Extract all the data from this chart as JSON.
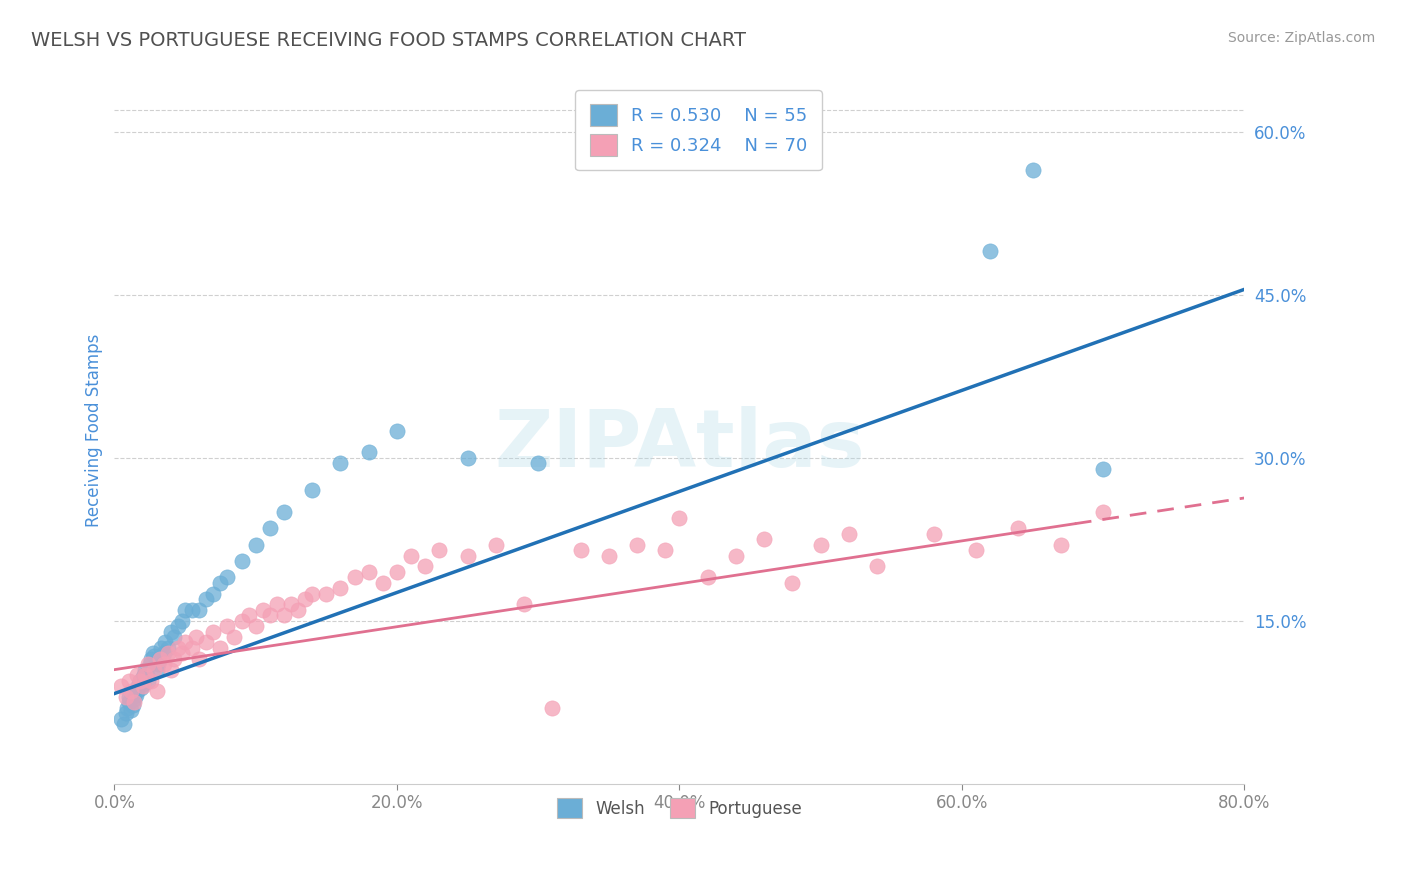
{
  "title": "WELSH VS PORTUGUESE RECEIVING FOOD STAMPS CORRELATION CHART",
  "source": "Source: ZipAtlas.com",
  "ylabel": "Receiving Food Stamps",
  "xlabel_ticks": [
    "0.0%",
    "20.0%",
    "40.0%",
    "60.0%",
    "80.0%"
  ],
  "ylabel_ticks": [
    "15.0%",
    "30.0%",
    "45.0%",
    "60.0%"
  ],
  "xlim": [
    0.0,
    0.8
  ],
  "ylim": [
    0.0,
    0.65
  ],
  "ytick_vals": [
    0.15,
    0.3,
    0.45,
    0.6
  ],
  "xtick_vals": [
    0.0,
    0.2,
    0.4,
    0.6,
    0.8
  ],
  "welsh_R": 0.53,
  "welsh_N": 55,
  "portuguese_R": 0.324,
  "portuguese_N": 70,
  "welsh_color": "#6baed6",
  "portuguese_color": "#f4a0b5",
  "welsh_line_color": "#2171b5",
  "portuguese_line_color": "#e07090",
  "background_color": "#ffffff",
  "grid_color": "#d0d0d0",
  "watermark": "ZIPAtlas",
  "watermark_color": "#add8e6",
  "title_color": "#505050",
  "axis_label_color": "#4a90d9",
  "tick_color": "#888888",
  "welsh_line_x0": 0.0,
  "welsh_line_y0": 0.083,
  "welsh_line_x1": 0.8,
  "welsh_line_y1": 0.455,
  "port_line_x0": 0.0,
  "port_line_y0": 0.105,
  "port_line_x1": 0.8,
  "port_line_y1": 0.263,
  "port_line_solid_x1": 0.68,
  "welsh_scatter_x": [
    0.005,
    0.007,
    0.008,
    0.009,
    0.01,
    0.01,
    0.012,
    0.013,
    0.014,
    0.015,
    0.016,
    0.017,
    0.018,
    0.019,
    0.02,
    0.02,
    0.021,
    0.022,
    0.023,
    0.024,
    0.025,
    0.026,
    0.027,
    0.028,
    0.03,
    0.031,
    0.032,
    0.033,
    0.035,
    0.036,
    0.038,
    0.04,
    0.042,
    0.045,
    0.048,
    0.05,
    0.055,
    0.06,
    0.065,
    0.07,
    0.075,
    0.08,
    0.09,
    0.1,
    0.11,
    0.12,
    0.14,
    0.16,
    0.18,
    0.2,
    0.25,
    0.3,
    0.62,
    0.65,
    0.7
  ],
  "welsh_scatter_y": [
    0.06,
    0.055,
    0.065,
    0.07,
    0.075,
    0.08,
    0.068,
    0.072,
    0.078,
    0.082,
    0.085,
    0.09,
    0.095,
    0.088,
    0.092,
    0.098,
    0.1,
    0.105,
    0.1,
    0.095,
    0.11,
    0.115,
    0.12,
    0.118,
    0.105,
    0.11,
    0.115,
    0.125,
    0.12,
    0.13,
    0.125,
    0.14,
    0.135,
    0.145,
    0.15,
    0.16,
    0.16,
    0.16,
    0.17,
    0.175,
    0.185,
    0.19,
    0.205,
    0.22,
    0.235,
    0.25,
    0.27,
    0.295,
    0.305,
    0.325,
    0.3,
    0.295,
    0.49,
    0.565,
    0.29
  ],
  "portuguese_scatter_x": [
    0.005,
    0.008,
    0.01,
    0.012,
    0.014,
    0.016,
    0.018,
    0.02,
    0.022,
    0.024,
    0.026,
    0.028,
    0.03,
    0.032,
    0.035,
    0.038,
    0.04,
    0.042,
    0.045,
    0.048,
    0.05,
    0.055,
    0.058,
    0.06,
    0.065,
    0.07,
    0.075,
    0.08,
    0.085,
    0.09,
    0.095,
    0.1,
    0.105,
    0.11,
    0.115,
    0.12,
    0.125,
    0.13,
    0.135,
    0.14,
    0.15,
    0.16,
    0.17,
    0.18,
    0.19,
    0.2,
    0.21,
    0.22,
    0.23,
    0.25,
    0.27,
    0.29,
    0.31,
    0.33,
    0.35,
    0.37,
    0.39,
    0.4,
    0.42,
    0.44,
    0.46,
    0.48,
    0.5,
    0.52,
    0.54,
    0.58,
    0.61,
    0.64,
    0.67,
    0.7
  ],
  "portuguese_scatter_y": [
    0.09,
    0.08,
    0.095,
    0.085,
    0.075,
    0.1,
    0.095,
    0.09,
    0.1,
    0.11,
    0.095,
    0.105,
    0.085,
    0.115,
    0.11,
    0.12,
    0.105,
    0.115,
    0.125,
    0.12,
    0.13,
    0.125,
    0.135,
    0.115,
    0.13,
    0.14,
    0.125,
    0.145,
    0.135,
    0.15,
    0.155,
    0.145,
    0.16,
    0.155,
    0.165,
    0.155,
    0.165,
    0.16,
    0.17,
    0.175,
    0.175,
    0.18,
    0.19,
    0.195,
    0.185,
    0.195,
    0.21,
    0.2,
    0.215,
    0.21,
    0.22,
    0.165,
    0.07,
    0.215,
    0.21,
    0.22,
    0.215,
    0.245,
    0.19,
    0.21,
    0.225,
    0.185,
    0.22,
    0.23,
    0.2,
    0.23,
    0.215,
    0.235,
    0.22,
    0.25
  ]
}
